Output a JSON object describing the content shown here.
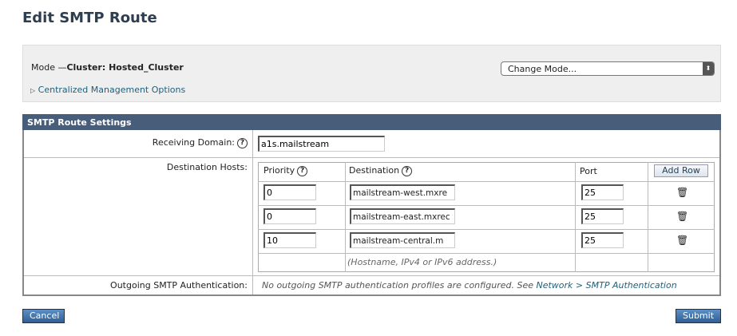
{
  "page_title": "Edit SMTP Route",
  "mode": {
    "label": "Mode —",
    "value": "Cluster: Hosted_Cluster",
    "change_mode": "Change Mode...",
    "centralized": "Centralized Management Options"
  },
  "section_title": "SMTP Route Settings",
  "receiving_domain": {
    "label": "Receiving Domain:",
    "value": "a1s.mailstream"
  },
  "destination_hosts": {
    "label": "Destination Hosts:",
    "headers": {
      "priority": "Priority",
      "destination": "Destination",
      "port": "Port"
    },
    "add_row": "Add Row",
    "rows": [
      {
        "priority": "0",
        "destination": "mailstream-west.mxre",
        "port": "25"
      },
      {
        "priority": "0",
        "destination": "mailstream-east.mxrec",
        "port": "25"
      },
      {
        "priority": "10",
        "destination": "mailstream-central.m",
        "port": "25"
      }
    ],
    "hint": "(Hostname, IPv4 or IPv6 address.)"
  },
  "outgoing_auth": {
    "label": "Outgoing SMTP Authentication:",
    "text": "No outgoing SMTP authentication profiles are configured. See ",
    "link": "Network > SMTP Authentication"
  },
  "buttons": {
    "cancel": "Cancel",
    "submit": "Submit"
  },
  "colors": {
    "header_bg": "#485d7a",
    "link": "#1f5f7a",
    "button": "#2e5f97"
  }
}
